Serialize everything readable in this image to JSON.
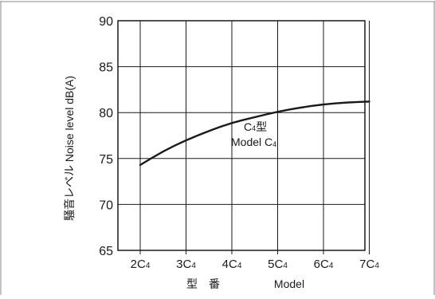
{
  "chart_data": {
    "type": "line",
    "ylabel": "騒音レベル  Noise level dB(A)",
    "xlabel_jp": "型　番",
    "xlabel_en": "Model",
    "ylim": [
      65,
      90
    ],
    "yticks": [
      "65",
      "70",
      "75",
      "80",
      "85",
      "90"
    ],
    "categories": [
      {
        "main": "2C",
        "sub": "4"
      },
      {
        "main": "3C",
        "sub": "4"
      },
      {
        "main": "4C",
        "sub": "4"
      },
      {
        "main": "5C",
        "sub": "4"
      },
      {
        "main": "6C",
        "sub": "4"
      },
      {
        "main": "7C",
        "sub": "4"
      }
    ],
    "grid": true,
    "legend": "none",
    "series": [
      {
        "x": [
          0,
          0.5,
          1,
          1.5,
          2,
          2.5,
          3,
          3.5,
          4,
          4.5,
          5
        ],
        "values": [
          74.3,
          75.8,
          77.0,
          78.0,
          78.9,
          79.5,
          80.1,
          80.55,
          80.9,
          81.1,
          81.2
        ],
        "color": "#1a1a1a"
      }
    ],
    "annotation": {
      "line1": {
        "main": "C",
        "sub": "4",
        "tail": "型"
      },
      "line2": {
        "main": "Model C",
        "sub": "4"
      }
    }
  }
}
